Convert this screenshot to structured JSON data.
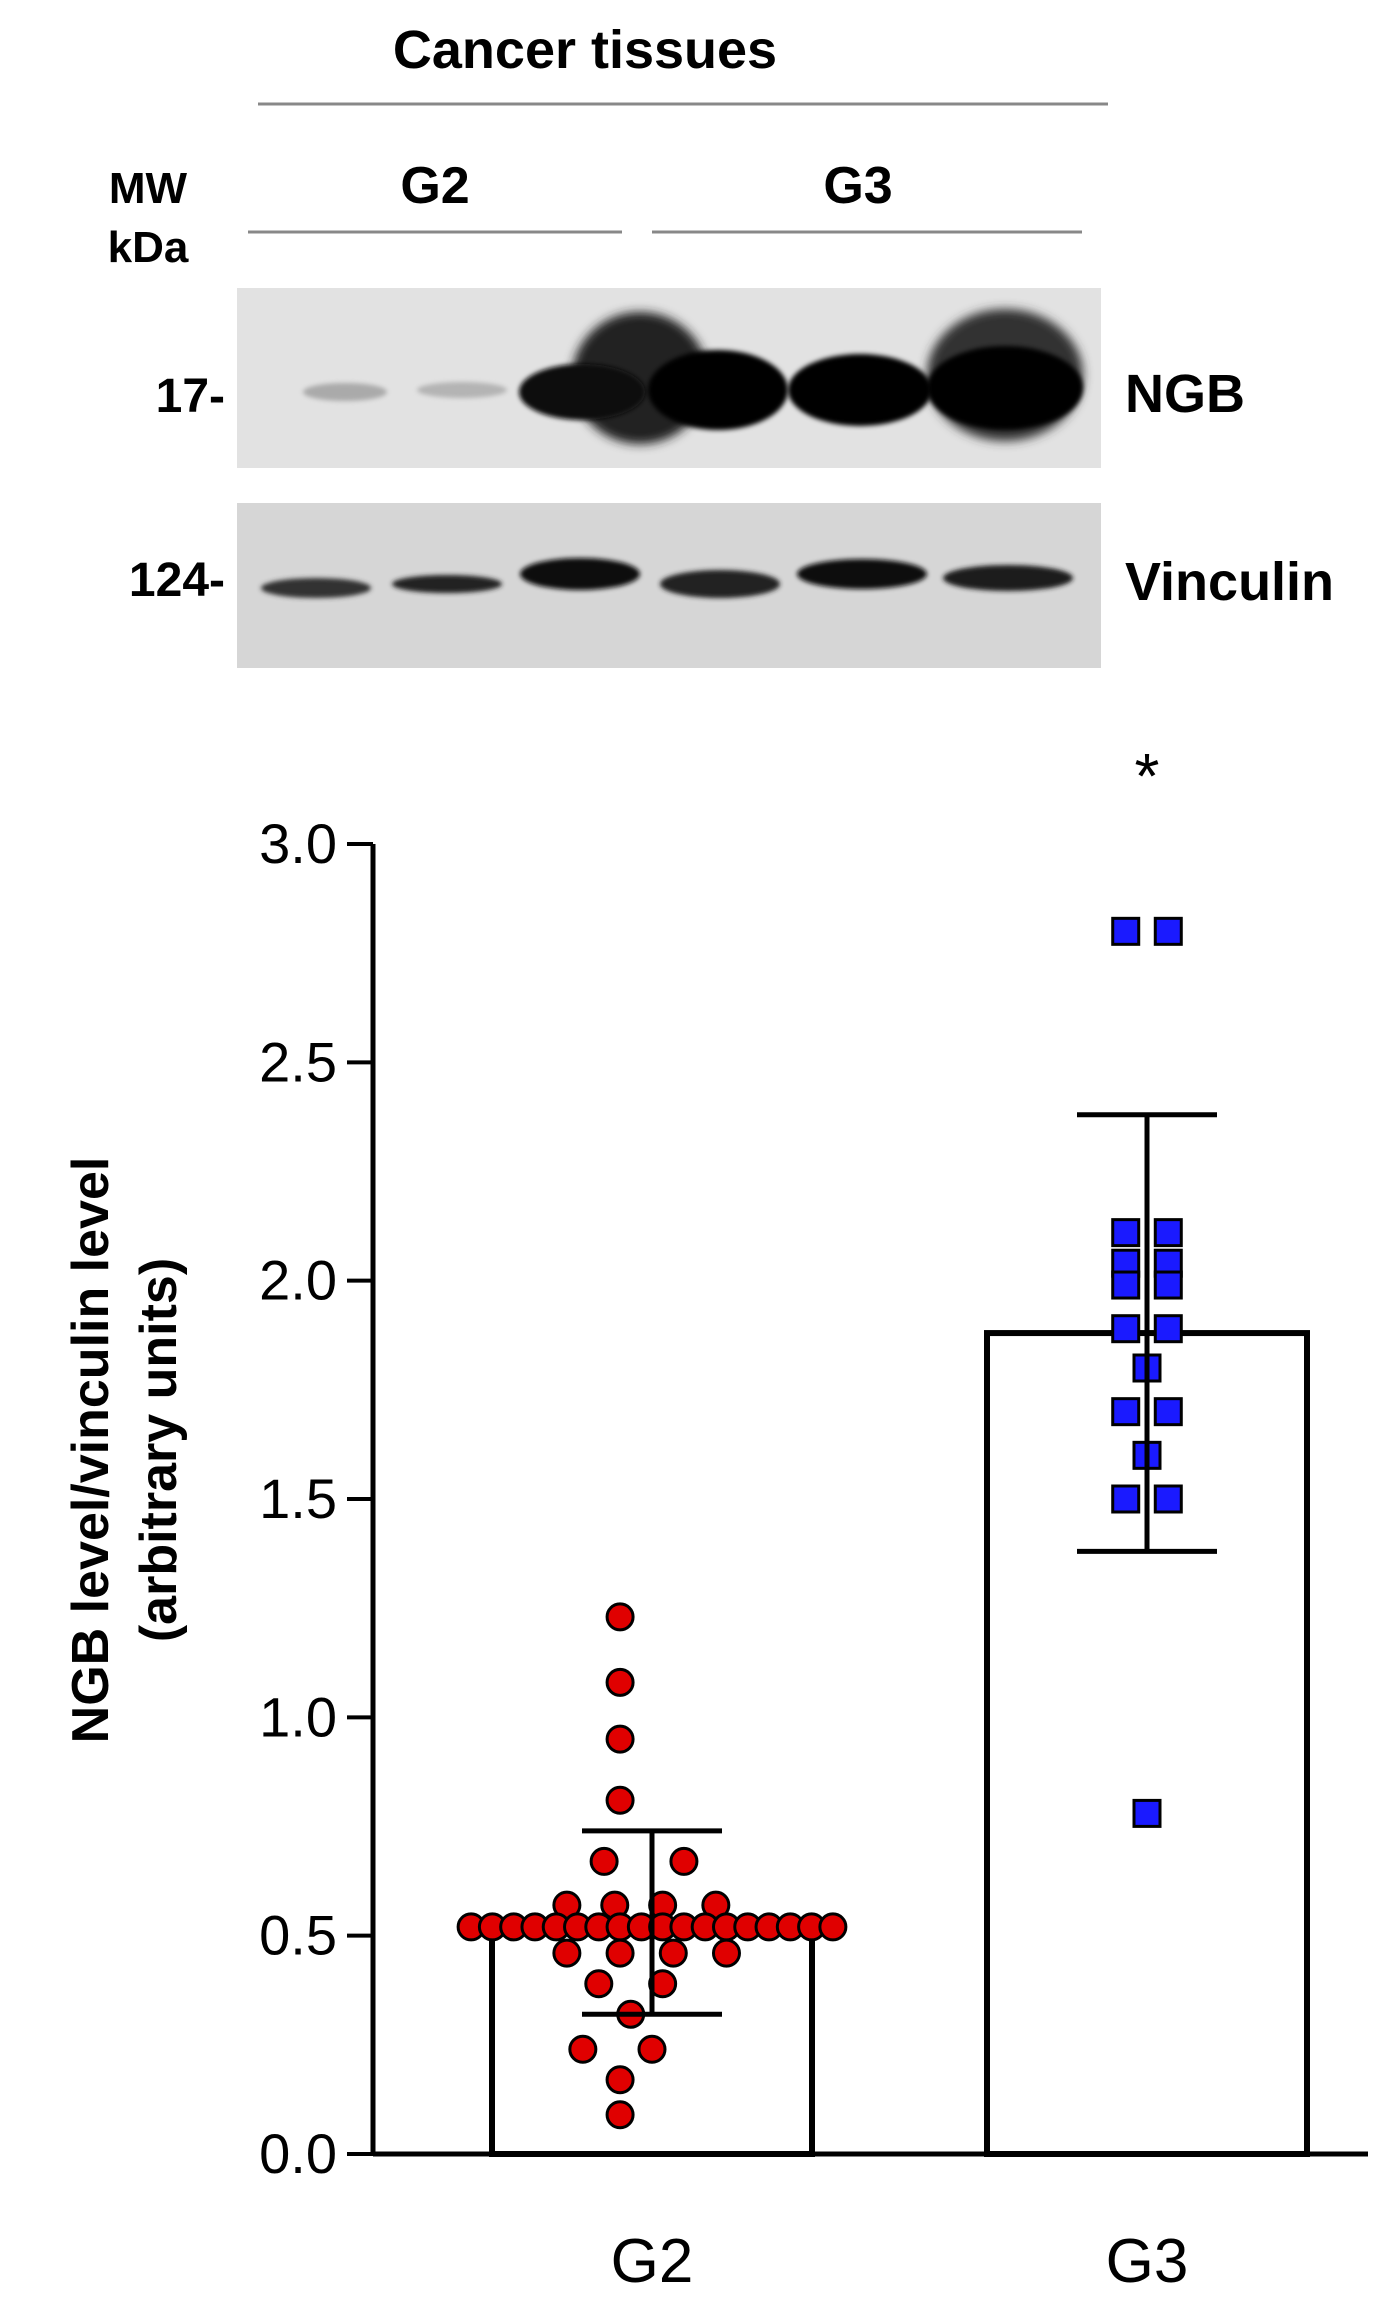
{
  "blot": {
    "header": "Cancer tissues",
    "mw_label_1": "MW",
    "mw_label_2": "kDa",
    "groups": [
      "G2",
      "G3"
    ],
    "bands": [
      {
        "name": "NGB",
        "mw": "17-"
      },
      {
        "name": "Vinculin",
        "mw": "124-"
      }
    ]
  },
  "colors": {
    "g2_points": "#e00000",
    "g3_points": "#1a1aff",
    "axis": "#000000"
  },
  "chart_data": {
    "type": "bar",
    "categories": [
      "G2",
      "G3"
    ],
    "ylabel_line1": "NGB level/vinculin level",
    "ylabel_line2": "(arbitrary units)",
    "ylim": [
      0,
      3.0
    ],
    "yticks": [
      "0.0",
      "0.5",
      "1.0",
      "1.5",
      "2.0",
      "2.5",
      "3.0"
    ],
    "bars": [
      {
        "category": "G2",
        "mean": 0.53,
        "error_low": 0.32,
        "error_high": 0.74
      },
      {
        "category": "G3",
        "mean": 1.88,
        "error_low": 1.38,
        "error_high": 2.38
      }
    ],
    "significance": [
      {
        "category": "G3",
        "label": "*"
      }
    ],
    "points": {
      "G2": [
        [
          -0.06,
          1.23
        ],
        [
          -0.06,
          1.08
        ],
        [
          -0.06,
          0.95
        ],
        [
          -0.06,
          0.81
        ],
        [
          -0.09,
          0.67
        ],
        [
          0.06,
          0.67
        ],
        [
          -0.16,
          0.57
        ],
        [
          -0.07,
          0.57
        ],
        [
          0.02,
          0.57
        ],
        [
          0.12,
          0.57
        ],
        [
          -0.34,
          0.52
        ],
        [
          -0.3,
          0.52
        ],
        [
          -0.26,
          0.52
        ],
        [
          -0.22,
          0.52
        ],
        [
          -0.18,
          0.52
        ],
        [
          -0.14,
          0.52
        ],
        [
          -0.1,
          0.52
        ],
        [
          -0.06,
          0.52
        ],
        [
          -0.02,
          0.52
        ],
        [
          0.02,
          0.52
        ],
        [
          0.06,
          0.52
        ],
        [
          0.1,
          0.52
        ],
        [
          0.14,
          0.52
        ],
        [
          0.18,
          0.52
        ],
        [
          0.22,
          0.52
        ],
        [
          0.26,
          0.52
        ],
        [
          0.3,
          0.52
        ],
        [
          0.34,
          0.52
        ],
        [
          -0.16,
          0.46
        ],
        [
          -0.06,
          0.46
        ],
        [
          0.04,
          0.46
        ],
        [
          0.14,
          0.46
        ],
        [
          -0.1,
          0.39
        ],
        [
          0.02,
          0.39
        ],
        [
          -0.04,
          0.32
        ],
        [
          -0.13,
          0.24
        ],
        [
          0.0,
          0.24
        ],
        [
          -0.06,
          0.17
        ],
        [
          -0.06,
          0.09
        ]
      ],
      "G3": [
        [
          -0.04,
          2.8
        ],
        [
          0.04,
          2.8
        ],
        [
          -0.04,
          2.11
        ],
        [
          0.04,
          2.11
        ],
        [
          -0.04,
          2.04
        ],
        [
          0.04,
          2.04
        ],
        [
          -0.04,
          1.99
        ],
        [
          0.04,
          1.99
        ],
        [
          -0.04,
          1.89
        ],
        [
          0.04,
          1.89
        ],
        [
          0.0,
          1.8
        ],
        [
          -0.04,
          1.7
        ],
        [
          0.04,
          1.7
        ],
        [
          0.0,
          1.6
        ],
        [
          -0.04,
          1.5
        ],
        [
          0.04,
          1.5
        ],
        [
          0.0,
          0.78
        ]
      ]
    }
  }
}
